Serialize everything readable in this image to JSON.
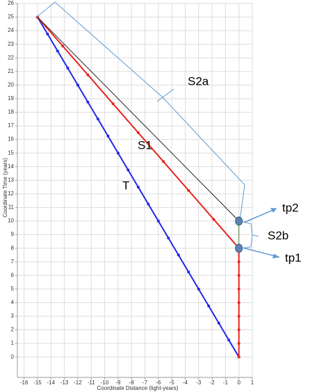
{
  "chart_data": {
    "type": "line",
    "x_label": "Coordinate Distance (light-years)",
    "y_label": "Coordinate Time (years)",
    "xlim": [
      -16.5,
      1
    ],
    "ylim": [
      -1.5,
      26
    ],
    "xticks": [
      -16,
      -15,
      -14,
      -13,
      -12,
      -11,
      -10,
      -9,
      -8,
      -7,
      -6,
      -5,
      -4,
      -3,
      -2,
      -1,
      0,
      1
    ],
    "yticks": [
      0,
      1,
      2,
      3,
      4,
      5,
      6,
      7,
      8,
      9,
      10,
      11,
      12,
      13,
      14,
      15,
      16,
      17,
      18,
      19,
      20,
      21,
      22,
      23,
      24,
      25,
      26
    ],
    "grid": true,
    "series": [
      {
        "name": "T",
        "color": "#1f28e6",
        "markers": true,
        "x": [
          0,
          -0.75,
          -1.5,
          -2.25,
          -3,
          -3.75,
          -4.5,
          -5.25,
          -6,
          -6.75,
          -7.5,
          -8.25,
          -9,
          -9.75,
          -10.5,
          -11.25,
          -12,
          -12.75,
          -13.5,
          -14.25,
          -15
        ],
        "values": [
          0,
          1.25,
          2.5,
          3.75,
          5,
          6.25,
          7.5,
          8.75,
          10,
          11.25,
          12.5,
          13.75,
          15,
          16.25,
          17.5,
          18.75,
          20,
          21.25,
          22.5,
          23.75,
          25
        ]
      },
      {
        "name": "S1",
        "color": "#e8241e",
        "markers": true,
        "x": [
          0,
          0,
          0,
          0,
          0,
          0,
          0,
          0,
          0,
          -1.875,
          -3.75,
          -5.625,
          -7.5,
          -9.375,
          -11.25,
          -13.125,
          -15
        ],
        "values": [
          0,
          1,
          2,
          3,
          4,
          5,
          6,
          7,
          8,
          10.125,
          12.25,
          14.375,
          16.5,
          18.625,
          20.75,
          22.875,
          25
        ]
      },
      {
        "name": "S2a",
        "color": "#222222",
        "markers": false,
        "x": [
          -15,
          0
        ],
        "values": [
          25,
          10
        ]
      },
      {
        "name": "S2b",
        "color": "#4f7a2c",
        "markers": false,
        "x": [
          0,
          0
        ],
        "values": [
          8,
          10
        ]
      }
    ],
    "points": [
      {
        "label": "tp1",
        "x": 0,
        "y": 8,
        "color": "#5d84b0"
      },
      {
        "label": "tp2",
        "x": 0,
        "y": 10,
        "color": "#5d84b0"
      }
    ]
  }
}
